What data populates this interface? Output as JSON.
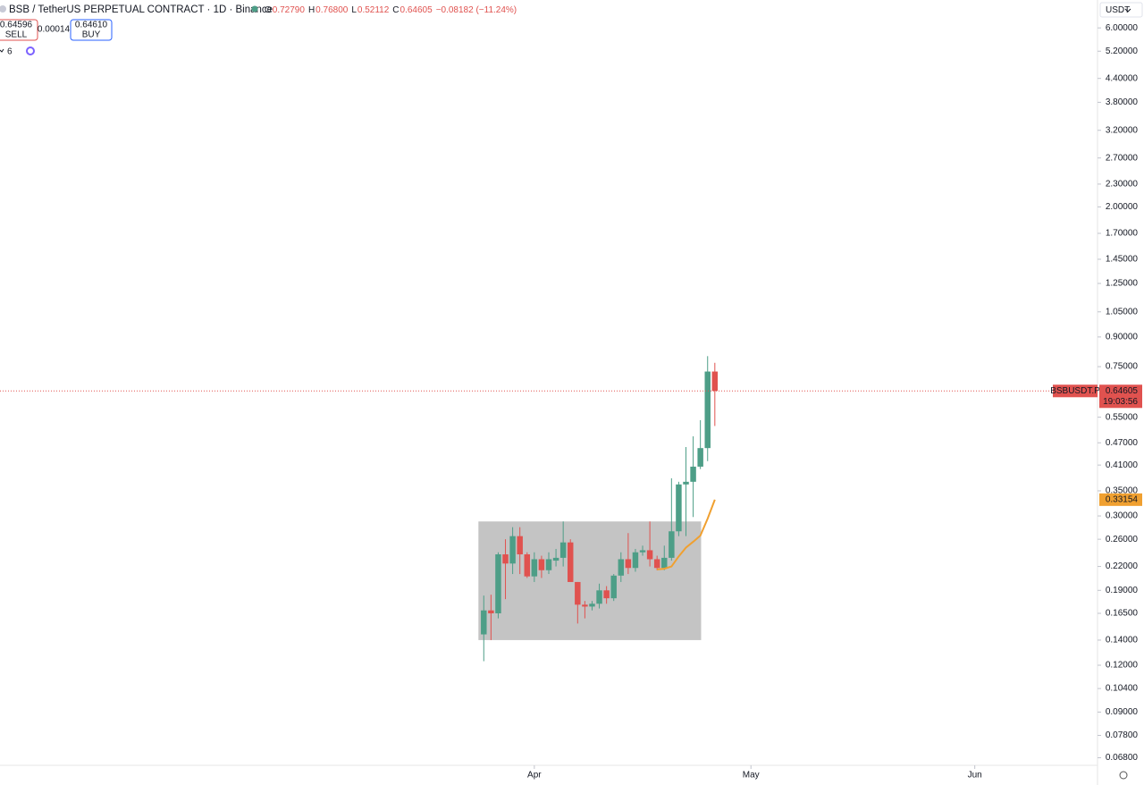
{
  "header": {
    "symbol": "BSB / TetherUS PERPETUAL CONTRACT · 1D · Binance",
    "o_label": "O",
    "o": "0.72790",
    "h_label": "H",
    "h": "0.76800",
    "l_label": "L",
    "l": "0.52112",
    "c_label": "C",
    "c": "0.64605",
    "change": "−0.08182 (−11.24%)",
    "sell_price": "0.64596",
    "sell": "SELL",
    "spread": "0.00014",
    "buy_price": "0.64610",
    "buy": "BUY",
    "indicators": "6",
    "currency": "USDT"
  },
  "chart_data": {
    "type": "candlestick",
    "log_scale": true,
    "up_color": "#4d9e87",
    "down_color": "#e0524f",
    "candles": {
      "x": [
        0,
        1,
        2,
        3,
        4,
        5,
        6,
        7,
        8,
        9,
        10,
        11,
        12,
        13,
        14,
        15,
        16,
        17,
        18,
        19,
        20,
        21,
        22,
        23,
        24,
        25,
        26,
        27,
        28,
        29,
        30,
        31,
        32
      ],
      "open": [
        0.145,
        0.168,
        0.165,
        0.237,
        0.224,
        0.265,
        0.237,
        0.207,
        0.23,
        0.215,
        0.228,
        0.232,
        0.255,
        0.2,
        0.174,
        0.172,
        0.175,
        0.19,
        0.181,
        0.208,
        0.23,
        0.218,
        0.24,
        0.243,
        0.23,
        0.218,
        0.232,
        0.273,
        0.364,
        0.37,
        0.406,
        0.455,
        0.7279
      ],
      "high": [
        0.184,
        0.185,
        0.24,
        0.26,
        0.28,
        0.28,
        0.24,
        0.24,
        0.235,
        0.24,
        0.245,
        0.29,
        0.26,
        0.2,
        0.178,
        0.178,
        0.198,
        0.195,
        0.21,
        0.24,
        0.27,
        0.245,
        0.25,
        0.29,
        0.235,
        0.25,
        0.378,
        0.37,
        0.458,
        0.489,
        0.54,
        0.8,
        0.768
      ],
      "low": [
        0.123,
        0.14,
        0.16,
        0.18,
        0.21,
        0.21,
        0.205,
        0.2,
        0.205,
        0.21,
        0.22,
        0.22,
        0.2,
        0.155,
        0.16,
        0.168,
        0.17,
        0.175,
        0.178,
        0.2,
        0.21,
        0.213,
        0.235,
        0.22,
        0.215,
        0.215,
        0.228,
        0.265,
        0.265,
        0.298,
        0.4,
        0.42,
        0.52112
      ],
      "close": [
        0.168,
        0.165,
        0.237,
        0.224,
        0.265,
        0.237,
        0.207,
        0.23,
        0.215,
        0.23,
        0.232,
        0.255,
        0.2,
        0.174,
        0.172,
        0.175,
        0.19,
        0.181,
        0.208,
        0.23,
        0.218,
        0.24,
        0.243,
        0.23,
        0.218,
        0.232,
        0.273,
        0.364,
        0.37,
        0.406,
        0.455,
        0.7279,
        0.64605
      ]
    },
    "ma": {
      "color": "#f0a030",
      "values": [
        null,
        null,
        null,
        null,
        null,
        null,
        null,
        null,
        null,
        null,
        null,
        null,
        null,
        null,
        null,
        null,
        null,
        null,
        null,
        null,
        null,
        null,
        null,
        null,
        0.216,
        0.217,
        0.22,
        0.234,
        0.247,
        0.256,
        0.266,
        0.295,
        0.33154
      ]
    },
    "last_price_name": "BSBUSDT.P",
    "countdown": "19:03:56",
    "rectangle": {
      "x": [
        -0.74,
        30.1
      ],
      "y": [
        0.29,
        0.14
      ],
      "color": "#c4c4c4"
    },
    "xlim": [
      -67,
      85
    ],
    "xticks": [
      {
        "value": 7,
        "label": "Apr"
      },
      {
        "value": 37,
        "label": "May"
      },
      {
        "value": 68,
        "label": "Jun"
      }
    ],
    "ylim": [
      0.0635,
      7.12
    ],
    "yticks": [
      {
        "value": 6,
        "label": "6.00000"
      },
      {
        "value": 5.2,
        "label": "5.20000"
      },
      {
        "value": 4.4,
        "label": "4.40000"
      },
      {
        "value": 3.8,
        "label": "3.80000"
      },
      {
        "value": 3.2,
        "label": "3.20000"
      },
      {
        "value": 2.7,
        "label": "2.70000"
      },
      {
        "value": 2.3,
        "label": "2.30000"
      },
      {
        "value": 2,
        "label": "2.00000"
      },
      {
        "value": 1.7,
        "label": "1.70000"
      },
      {
        "value": 1.45,
        "label": "1.45000"
      },
      {
        "value": 1.25,
        "label": "1.25000"
      },
      {
        "value": 1.05,
        "label": "1.05000"
      },
      {
        "value": 0.9,
        "label": "0.90000"
      },
      {
        "value": 0.75,
        "label": "0.75000"
      },
      {
        "value": 0.55,
        "label": "0.55000"
      },
      {
        "value": 0.47,
        "label": "0.47000"
      },
      {
        "value": 0.41,
        "label": "0.41000"
      },
      {
        "value": 0.35,
        "label": "0.35000"
      },
      {
        "value": 0.3,
        "label": "0.30000"
      },
      {
        "value": 0.26,
        "label": "0.26000"
      },
      {
        "value": 0.22,
        "label": "0.22000"
      },
      {
        "value": 0.19,
        "label": "0.19000"
      },
      {
        "value": 0.165,
        "label": "0.16500"
      },
      {
        "value": 0.14,
        "label": "0.14000"
      },
      {
        "value": 0.12,
        "label": "0.12000"
      },
      {
        "value": 0.104,
        "label": "0.10400"
      },
      {
        "value": 0.09,
        "label": "0.09000"
      },
      {
        "value": 0.078,
        "label": "0.07800"
      },
      {
        "value": 0.068,
        "label": "0.06800"
      }
    ]
  }
}
